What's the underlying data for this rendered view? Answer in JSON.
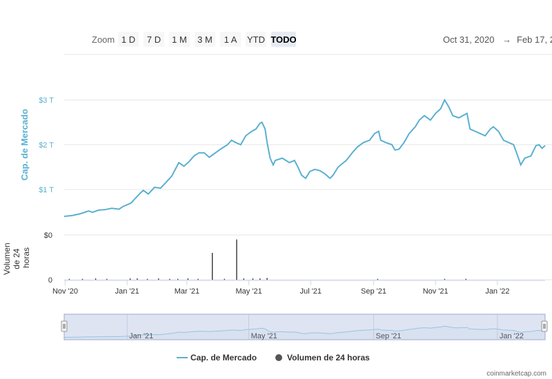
{
  "colors": {
    "cap_line": "#5aafd0",
    "volume_bar": "#333333",
    "nav_fill": "#ccd6eb",
    "nav_line": "#5aafd0",
    "grid": "#e6e6e6",
    "axis_label": "#5aafd0"
  },
  "zoom": {
    "label": "Zoom",
    "buttons": [
      "1 D",
      "7 D",
      "1 M",
      "3 M",
      "1 A",
      "YTD",
      "TODO"
    ],
    "active": "TODO"
  },
  "range": {
    "from": "Oct 31, 2020",
    "arrow": "→",
    "to": "Feb 17, 2"
  },
  "credit": "coinmarketcap.com",
  "chart_data": {
    "type": "line",
    "x_range": [
      "2020-10-31",
      "2022-02-17"
    ],
    "x_ticks": [
      {
        "date": "2020-11-01",
        "label": "Nov '20"
      },
      {
        "date": "2021-01-01",
        "label": "Jan '21"
      },
      {
        "date": "2021-03-01",
        "label": "Mar '21"
      },
      {
        "date": "2021-05-01",
        "label": "May '21"
      },
      {
        "date": "2021-07-01",
        "label": "Jul '21"
      },
      {
        "date": "2021-09-01",
        "label": "Sep '21"
      },
      {
        "date": "2021-11-01",
        "label": "Nov '21"
      },
      {
        "date": "2022-01-01",
        "label": "Jan '22"
      }
    ],
    "navigator_ticks": [
      {
        "date": "2021-01-01",
        "label": "Jan '21"
      },
      {
        "date": "2021-05-01",
        "label": "May '21"
      },
      {
        "date": "2021-09-01",
        "label": "Sep '21"
      },
      {
        "date": "2022-01-01",
        "label": "Jan '22"
      }
    ],
    "cap_axis": {
      "label": "Cap. de Mercado",
      "ylim": [
        0,
        3
      ],
      "ticks": [
        {
          "value": 1,
          "label": "$1 T"
        },
        {
          "value": 2,
          "label": "$2 T"
        },
        {
          "value": 3,
          "label": "$3 T"
        }
      ]
    },
    "volume_axis": {
      "label_lines": [
        "Volumen",
        "de 24",
        "horas"
      ],
      "ticks": [
        {
          "value": 0,
          "label": "0"
        },
        {
          "value": 1,
          "label": "$0"
        }
      ]
    },
    "grid": true,
    "legend": {
      "position": "bottom",
      "items": [
        {
          "name": "Cap. de Mercado",
          "marker": "line"
        },
        {
          "name": "Volumen de 24 horas",
          "marker": "circle"
        }
      ]
    },
    "series": [
      {
        "name": "Cap. de Mercado",
        "unit": "T USD",
        "points": [
          [
            "2020-10-31",
            0.4
          ],
          [
            "2020-11-08",
            0.42
          ],
          [
            "2020-11-16",
            0.46
          ],
          [
            "2020-11-24",
            0.52
          ],
          [
            "2020-11-28",
            0.49
          ],
          [
            "2020-12-04",
            0.54
          ],
          [
            "2020-12-10",
            0.55
          ],
          [
            "2020-12-17",
            0.58
          ],
          [
            "2020-12-24",
            0.56
          ],
          [
            "2020-12-28",
            0.62
          ],
          [
            "2021-01-05",
            0.7
          ],
          [
            "2021-01-09",
            0.8
          ],
          [
            "2021-01-14",
            0.92
          ],
          [
            "2021-01-17",
            0.98
          ],
          [
            "2021-01-22",
            0.9
          ],
          [
            "2021-01-28",
            1.05
          ],
          [
            "2021-02-03",
            1.03
          ],
          [
            "2021-02-08",
            1.15
          ],
          [
            "2021-02-14",
            1.3
          ],
          [
            "2021-02-21",
            1.6
          ],
          [
            "2021-02-26",
            1.52
          ],
          [
            "2021-03-03",
            1.62
          ],
          [
            "2021-03-08",
            1.75
          ],
          [
            "2021-03-13",
            1.82
          ],
          [
            "2021-03-18",
            1.82
          ],
          [
            "2021-03-23",
            1.72
          ],
          [
            "2021-03-28",
            1.8
          ],
          [
            "2021-04-03",
            1.9
          ],
          [
            "2021-04-10",
            2.0
          ],
          [
            "2021-04-14",
            2.1
          ],
          [
            "2021-04-18",
            2.05
          ],
          [
            "2021-04-23",
            2.0
          ],
          [
            "2021-04-28",
            2.2
          ],
          [
            "2021-05-04",
            2.3
          ],
          [
            "2021-05-08",
            2.35
          ],
          [
            "2021-05-12",
            2.48
          ],
          [
            "2021-05-14",
            2.5
          ],
          [
            "2021-05-17",
            2.35
          ],
          [
            "2021-05-19",
            2.05
          ],
          [
            "2021-05-22",
            1.7
          ],
          [
            "2021-05-25",
            1.55
          ],
          [
            "2021-05-27",
            1.65
          ],
          [
            "2021-06-03",
            1.7
          ],
          [
            "2021-06-10",
            1.6
          ],
          [
            "2021-06-15",
            1.65
          ],
          [
            "2021-06-18",
            1.52
          ],
          [
            "2021-06-22",
            1.32
          ],
          [
            "2021-06-26",
            1.25
          ],
          [
            "2021-06-30",
            1.4
          ],
          [
            "2021-07-05",
            1.45
          ],
          [
            "2021-07-10",
            1.42
          ],
          [
            "2021-07-15",
            1.35
          ],
          [
            "2021-07-20",
            1.25
          ],
          [
            "2021-07-23",
            1.32
          ],
          [
            "2021-07-28",
            1.5
          ],
          [
            "2021-08-05",
            1.65
          ],
          [
            "2021-08-12",
            1.85
          ],
          [
            "2021-08-16",
            1.95
          ],
          [
            "2021-08-22",
            2.05
          ],
          [
            "2021-08-28",
            2.1
          ],
          [
            "2021-09-02",
            2.25
          ],
          [
            "2021-09-06",
            2.3
          ],
          [
            "2021-09-08",
            2.1
          ],
          [
            "2021-09-13",
            2.05
          ],
          [
            "2021-09-19",
            2.0
          ],
          [
            "2021-09-22",
            1.88
          ],
          [
            "2021-09-26",
            1.9
          ],
          [
            "2021-10-01",
            2.05
          ],
          [
            "2021-10-06",
            2.25
          ],
          [
            "2021-10-12",
            2.4
          ],
          [
            "2021-10-16",
            2.55
          ],
          [
            "2021-10-21",
            2.65
          ],
          [
            "2021-10-27",
            2.55
          ],
          [
            "2021-11-01",
            2.7
          ],
          [
            "2021-11-06",
            2.8
          ],
          [
            "2021-11-10",
            3.0
          ],
          [
            "2021-11-14",
            2.85
          ],
          [
            "2021-11-18",
            2.65
          ],
          [
            "2021-11-24",
            2.6
          ],
          [
            "2021-11-28",
            2.65
          ],
          [
            "2021-12-02",
            2.7
          ],
          [
            "2021-12-05",
            2.35
          ],
          [
            "2021-12-10",
            2.3
          ],
          [
            "2021-12-15",
            2.25
          ],
          [
            "2021-12-20",
            2.2
          ],
          [
            "2021-12-25",
            2.35
          ],
          [
            "2021-12-28",
            2.4
          ],
          [
            "2022-01-02",
            2.3
          ],
          [
            "2022-01-07",
            2.1
          ],
          [
            "2022-01-12",
            2.05
          ],
          [
            "2022-01-17",
            2.0
          ],
          [
            "2022-01-21",
            1.75
          ],
          [
            "2022-01-24",
            1.55
          ],
          [
            "2022-01-28",
            1.7
          ],
          [
            "2022-02-03",
            1.75
          ],
          [
            "2022-02-08",
            1.98
          ],
          [
            "2022-02-11",
            2.0
          ],
          [
            "2022-02-14",
            1.92
          ],
          [
            "2022-02-17",
            1.98
          ]
        ]
      },
      {
        "name": "Volumen de 24 horas",
        "unit": "relative",
        "points": [
          [
            "2020-11-05",
            0.02
          ],
          [
            "2020-11-18",
            0.02
          ],
          [
            "2020-12-01",
            0.03
          ],
          [
            "2020-12-12",
            0.02
          ],
          [
            "2021-01-04",
            0.03
          ],
          [
            "2021-01-11",
            0.03
          ],
          [
            "2021-01-21",
            0.02
          ],
          [
            "2021-02-01",
            0.03
          ],
          [
            "2021-02-12",
            0.02
          ],
          [
            "2021-02-20",
            0.02
          ],
          [
            "2021-03-02",
            0.03
          ],
          [
            "2021-03-12",
            0.02
          ],
          [
            "2021-03-26",
            0.6
          ],
          [
            "2021-04-07",
            0.02
          ],
          [
            "2021-04-19",
            0.9
          ],
          [
            "2021-04-26",
            0.03
          ],
          [
            "2021-05-05",
            0.03
          ],
          [
            "2021-05-12",
            0.03
          ],
          [
            "2021-05-19",
            0.04
          ],
          [
            "2021-09-05",
            0.02
          ],
          [
            "2021-11-10",
            0.02
          ],
          [
            "2021-12-01",
            0.02
          ]
        ]
      }
    ]
  }
}
